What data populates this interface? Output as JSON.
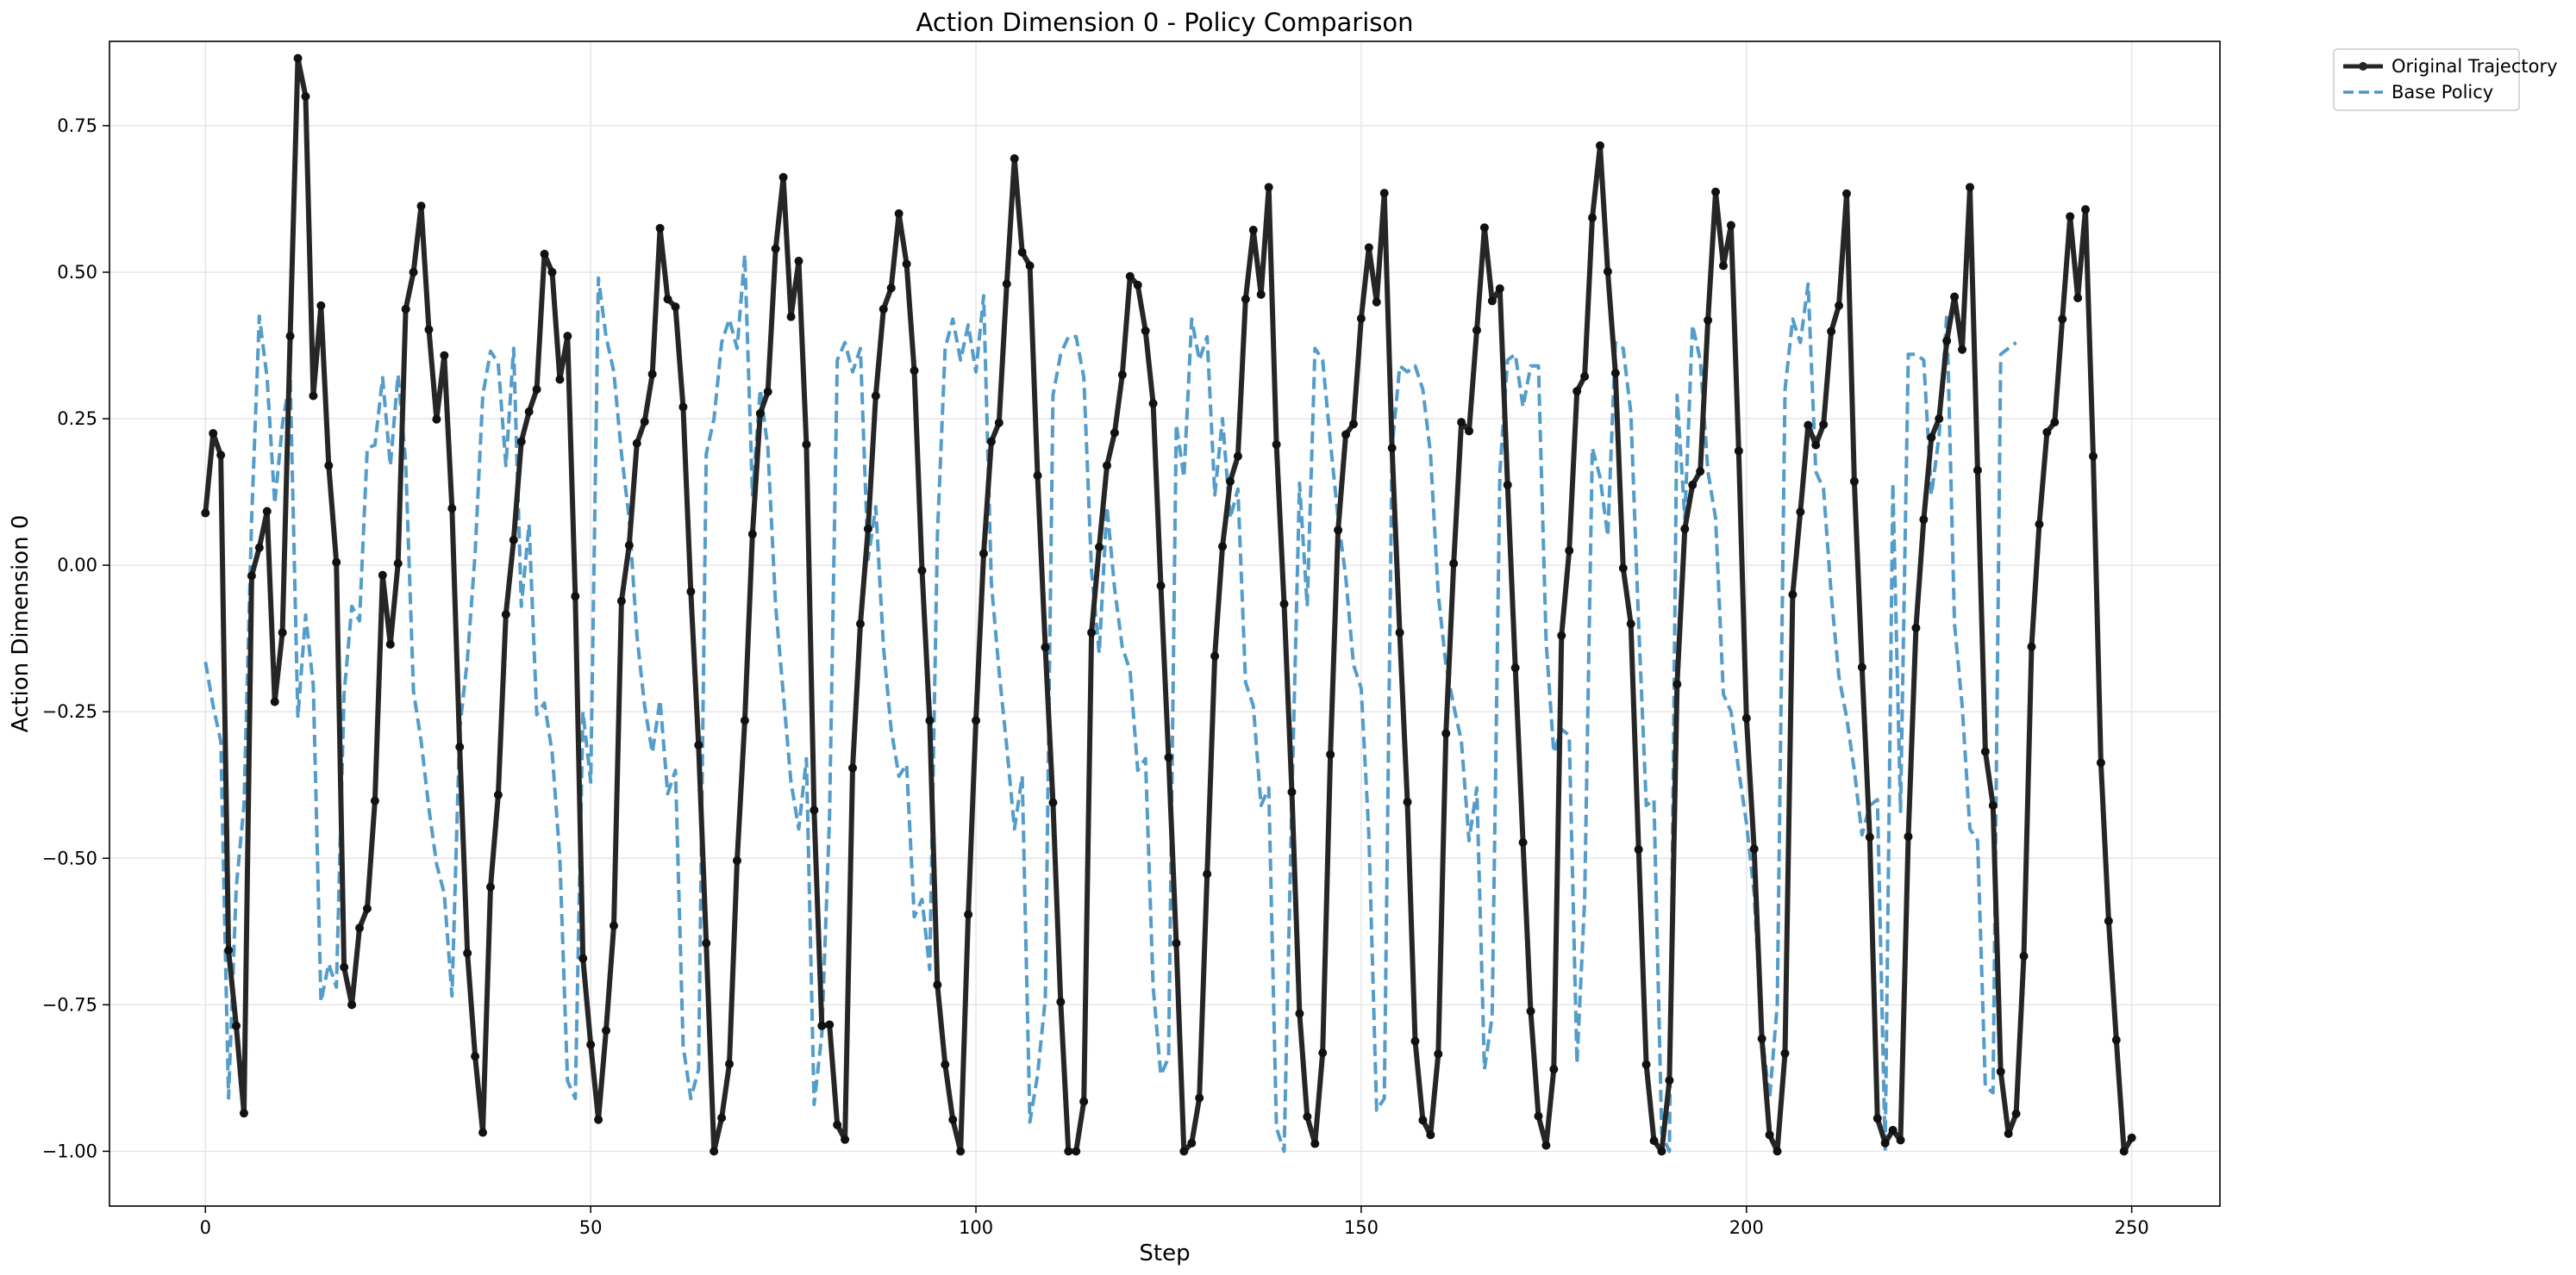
{
  "chart_data": {
    "type": "line",
    "title": "Action Dimension 0 - Policy Comparison",
    "xlabel": "Step",
    "ylabel": "Action Dimension 0",
    "xlim": [
      -12.45,
      261.45
    ],
    "ylim": [
      -1.0935,
      0.8939
    ],
    "xticks": [
      0,
      50,
      100,
      150,
      200,
      250
    ],
    "yticks": [
      -1.0,
      -0.75,
      -0.5,
      -0.25,
      0.0,
      0.25,
      0.5,
      0.75
    ],
    "xtick_labels": [
      "0",
      "50",
      "100",
      "150",
      "200",
      "250"
    ],
    "ytick_labels": [
      "−1.00",
      "−0.75",
      "−0.50",
      "−0.25",
      "0.00",
      "0.25",
      "0.50",
      "0.75"
    ],
    "grid": true,
    "legend_position": "outside-top-right",
    "series": [
      {
        "name": "Original Trajectory",
        "color": "#262626",
        "style": "solid-with-markers",
        "values": [
          0.089,
          0.225,
          0.188,
          -0.657,
          -0.786,
          -0.935,
          -0.018,
          0.03,
          0.092,
          -0.233,
          -0.115,
          0.391,
          0.865,
          0.8,
          0.289,
          0.443,
          0.17,
          0.005,
          -0.686,
          -0.75,
          -0.619,
          -0.586,
          -0.402,
          -0.017,
          -0.135,
          0.003,
          0.437,
          0.5,
          0.613,
          0.402,
          0.249,
          0.358,
          0.097,
          -0.31,
          -0.662,
          -0.838,
          -0.968,
          -0.549,
          -0.392,
          -0.084,
          0.043,
          0.211,
          0.262,
          0.3,
          0.531,
          0.5,
          0.317,
          0.391,
          -0.053,
          -0.671,
          -0.818,
          -0.946,
          -0.794,
          -0.615,
          -0.061,
          0.034,
          0.208,
          0.245,
          0.326,
          0.575,
          0.454,
          0.441,
          0.27,
          -0.045,
          -0.307,
          -0.645,
          -1.0,
          -0.943,
          -0.851,
          -0.504,
          -0.265,
          0.053,
          0.259,
          0.296,
          0.54,
          0.662,
          0.424,
          0.519,
          0.206,
          -0.418,
          -0.786,
          -0.784,
          -0.955,
          -0.98,
          -0.346,
          -0.1,
          0.062,
          0.289,
          0.437,
          0.473,
          0.6,
          0.514,
          0.332,
          -0.009,
          -0.265,
          -0.716,
          -0.852,
          -0.946,
          -1.0,
          -0.596,
          -0.265,
          0.02,
          0.211,
          0.243,
          0.48,
          0.694,
          0.534,
          0.511,
          0.153,
          -0.14,
          -0.405,
          -0.745,
          -1.0,
          -1.0,
          -0.915,
          -0.115,
          0.031,
          0.17,
          0.226,
          0.325,
          0.493,
          0.478,
          0.4,
          0.276,
          -0.035,
          -0.328,
          -0.645,
          -1.0,
          -0.986,
          -0.909,
          -0.527,
          -0.155,
          0.032,
          0.143,
          0.186,
          0.454,
          0.572,
          0.462,
          0.645,
          0.206,
          -0.066,
          -0.387,
          -0.765,
          -0.941,
          -0.987,
          -0.832,
          -0.323,
          0.06,
          0.223,
          0.241,
          0.421,
          0.542,
          0.449,
          0.635,
          0.2,
          -0.115,
          -0.404,
          -0.812,
          -0.947,
          -0.972,
          -0.834,
          -0.287,
          0.003,
          0.244,
          0.229,
          0.401,
          0.576,
          0.451,
          0.472,
          0.137,
          -0.175,
          -0.473,
          -0.761,
          -0.94,
          -0.99,
          -0.86,
          -0.12,
          0.025,
          0.297,
          0.322,
          0.593,
          0.716,
          0.501,
          0.328,
          -0.005,
          -0.1,
          -0.485,
          -0.852,
          -0.982,
          -1.0,
          -0.879,
          -0.203,
          0.062,
          0.137,
          0.16,
          0.418,
          0.637,
          0.511,
          0.58,
          0.195,
          -0.261,
          -0.484,
          -0.808,
          -0.972,
          -1.0,
          -0.833,
          -0.05,
          0.091,
          0.239,
          0.205,
          0.24,
          0.399,
          0.443,
          0.634,
          0.143,
          -0.174,
          -0.464,
          -0.944,
          -0.986,
          -0.964,
          -0.981,
          -0.463,
          -0.107,
          0.078,
          0.218,
          0.25,
          0.383,
          0.458,
          0.368,
          0.645,
          0.162,
          -0.318,
          -0.41,
          -0.864,
          -0.97,
          -0.936,
          -0.667,
          -0.139,
          0.07,
          0.227,
          0.244,
          0.42,
          0.595,
          0.456,
          0.607,
          0.186,
          -0.337,
          -0.607,
          -0.81,
          -1.0,
          -0.977
        ]
      },
      {
        "name": "Base Policy",
        "color": "#4b97c6",
        "style": "dashed",
        "values": [
          -0.165,
          -0.24,
          -0.3,
          -0.909,
          -0.55,
          -0.41,
          0.08,
          0.425,
          0.32,
          0.105,
          0.24,
          0.32,
          -0.26,
          -0.085,
          -0.205,
          -0.745,
          -0.68,
          -0.72,
          -0.22,
          -0.07,
          -0.095,
          0.2,
          0.205,
          0.32,
          0.17,
          0.325,
          0.175,
          -0.215,
          -0.3,
          -0.415,
          -0.51,
          -0.56,
          -0.735,
          -0.28,
          -0.16,
          0.02,
          0.29,
          0.365,
          0.345,
          0.17,
          0.37,
          -0.07,
          0.07,
          -0.255,
          -0.235,
          -0.32,
          -0.5,
          -0.88,
          -0.91,
          -0.25,
          -0.37,
          0.49,
          0.39,
          0.33,
          0.19,
          0.08,
          -0.12,
          -0.24,
          -0.32,
          -0.23,
          -0.39,
          -0.35,
          -0.82,
          -0.91,
          -0.86,
          0.19,
          0.25,
          0.38,
          0.42,
          0.37,
          0.53,
          0.12,
          0.3,
          0.2,
          -0.07,
          -0.22,
          -0.37,
          -0.45,
          -0.33,
          -0.92,
          -0.8,
          -0.43,
          0.35,
          0.38,
          0.33,
          0.37,
          0.01,
          0.1,
          -0.14,
          -0.28,
          -0.36,
          -0.34,
          -0.6,
          -0.57,
          -0.69,
          0.05,
          0.37,
          0.42,
          0.35,
          0.41,
          0.33,
          0.46,
          -0.03,
          -0.18,
          -0.31,
          -0.45,
          -0.36,
          -0.95,
          -0.87,
          -0.74,
          0.29,
          0.36,
          0.39,
          0.39,
          0.32,
          -0.01,
          -0.15,
          0.1,
          -0.04,
          -0.14,
          -0.18,
          -0.35,
          -0.33,
          -0.72,
          -0.87,
          -0.84,
          0.24,
          0.15,
          0.42,
          0.35,
          0.39,
          0.12,
          0.25,
          0.08,
          0.13,
          -0.2,
          -0.24,
          -0.41,
          -0.38,
          -0.96,
          -1.0,
          -0.4,
          0.14,
          -0.07,
          0.37,
          0.35,
          0.21,
          0.08,
          -0.02,
          -0.17,
          -0.21,
          -0.46,
          -0.93,
          -0.91,
          0.2,
          0.34,
          0.33,
          0.34,
          0.3,
          0.19,
          -0.05,
          -0.17,
          -0.24,
          -0.3,
          -0.47,
          -0.38,
          -0.86,
          -0.77,
          0.16,
          0.35,
          0.36,
          0.27,
          0.34,
          0.34,
          -0.13,
          -0.32,
          -0.28,
          -0.29,
          -0.85,
          -0.57,
          0.2,
          0.15,
          0.05,
          0.38,
          0.37,
          0.26,
          -0.1,
          -0.41,
          -0.4,
          -0.97,
          -1.0,
          0.29,
          0.08,
          0.41,
          0.35,
          0.16,
          0.08,
          -0.22,
          -0.25,
          -0.35,
          -0.44,
          -0.56,
          -0.8,
          -0.91,
          -0.75,
          0.3,
          0.42,
          0.38,
          0.48,
          0.16,
          0.13,
          -0.05,
          -0.19,
          -0.26,
          -0.35,
          -0.46,
          -0.41,
          -0.4,
          -1.0,
          0.14,
          -0.42,
          0.36,
          0.36,
          0.35,
          0.12,
          0.22,
          0.43,
          -0.1,
          -0.24,
          -0.45,
          -0.47,
          -0.89,
          -0.9,
          0.36,
          0.37,
          0.38
        ]
      }
    ]
  }
}
